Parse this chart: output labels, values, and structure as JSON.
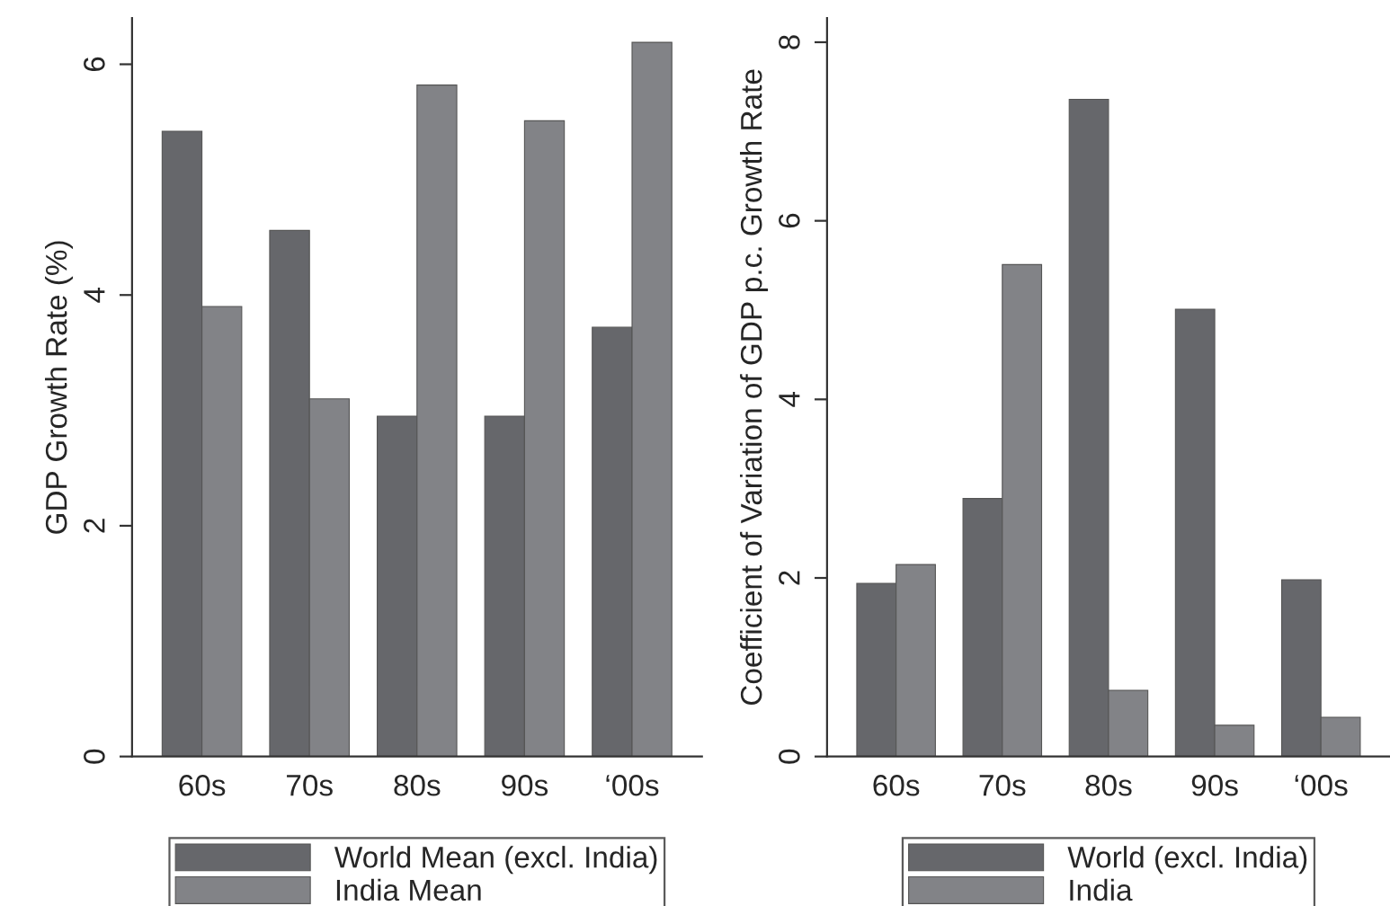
{
  "chart_data": [
    {
      "type": "bar",
      "ylabel": "GDP Growth Rate (%)",
      "categories": [
        "60s",
        "70s",
        "80s",
        "90s",
        "‘00s"
      ],
      "series": [
        {
          "name": "World Mean (excl. India)",
          "color": "#66676b",
          "values": [
            5.42,
            4.56,
            2.95,
            2.95,
            3.72
          ]
        },
        {
          "name": "India Mean",
          "color": "#828387",
          "values": [
            3.9,
            3.1,
            5.82,
            5.51,
            6.19
          ]
        }
      ],
      "ylim": [
        0,
        6.4
      ],
      "yticks": [
        0,
        2,
        4,
        6
      ],
      "grid": false,
      "legend": "bottom"
    },
    {
      "type": "bar",
      "ylabel": "Coefficient of Variation of GDP p.c. Growth Rate",
      "categories": [
        "60s",
        "70s",
        "80s",
        "90s",
        "‘00s"
      ],
      "series": [
        {
          "name": "World (excl. India)",
          "color": "#66676b",
          "values": [
            1.94,
            2.89,
            7.36,
            5.01,
            1.98
          ]
        },
        {
          "name": "India",
          "color": "#828387",
          "values": [
            2.15,
            5.51,
            0.74,
            0.35,
            0.44
          ]
        }
      ],
      "ylim": [
        0,
        8.27
      ],
      "yticks": [
        0,
        2,
        4,
        6,
        8
      ],
      "grid": false,
      "legend": "bottom"
    }
  ]
}
